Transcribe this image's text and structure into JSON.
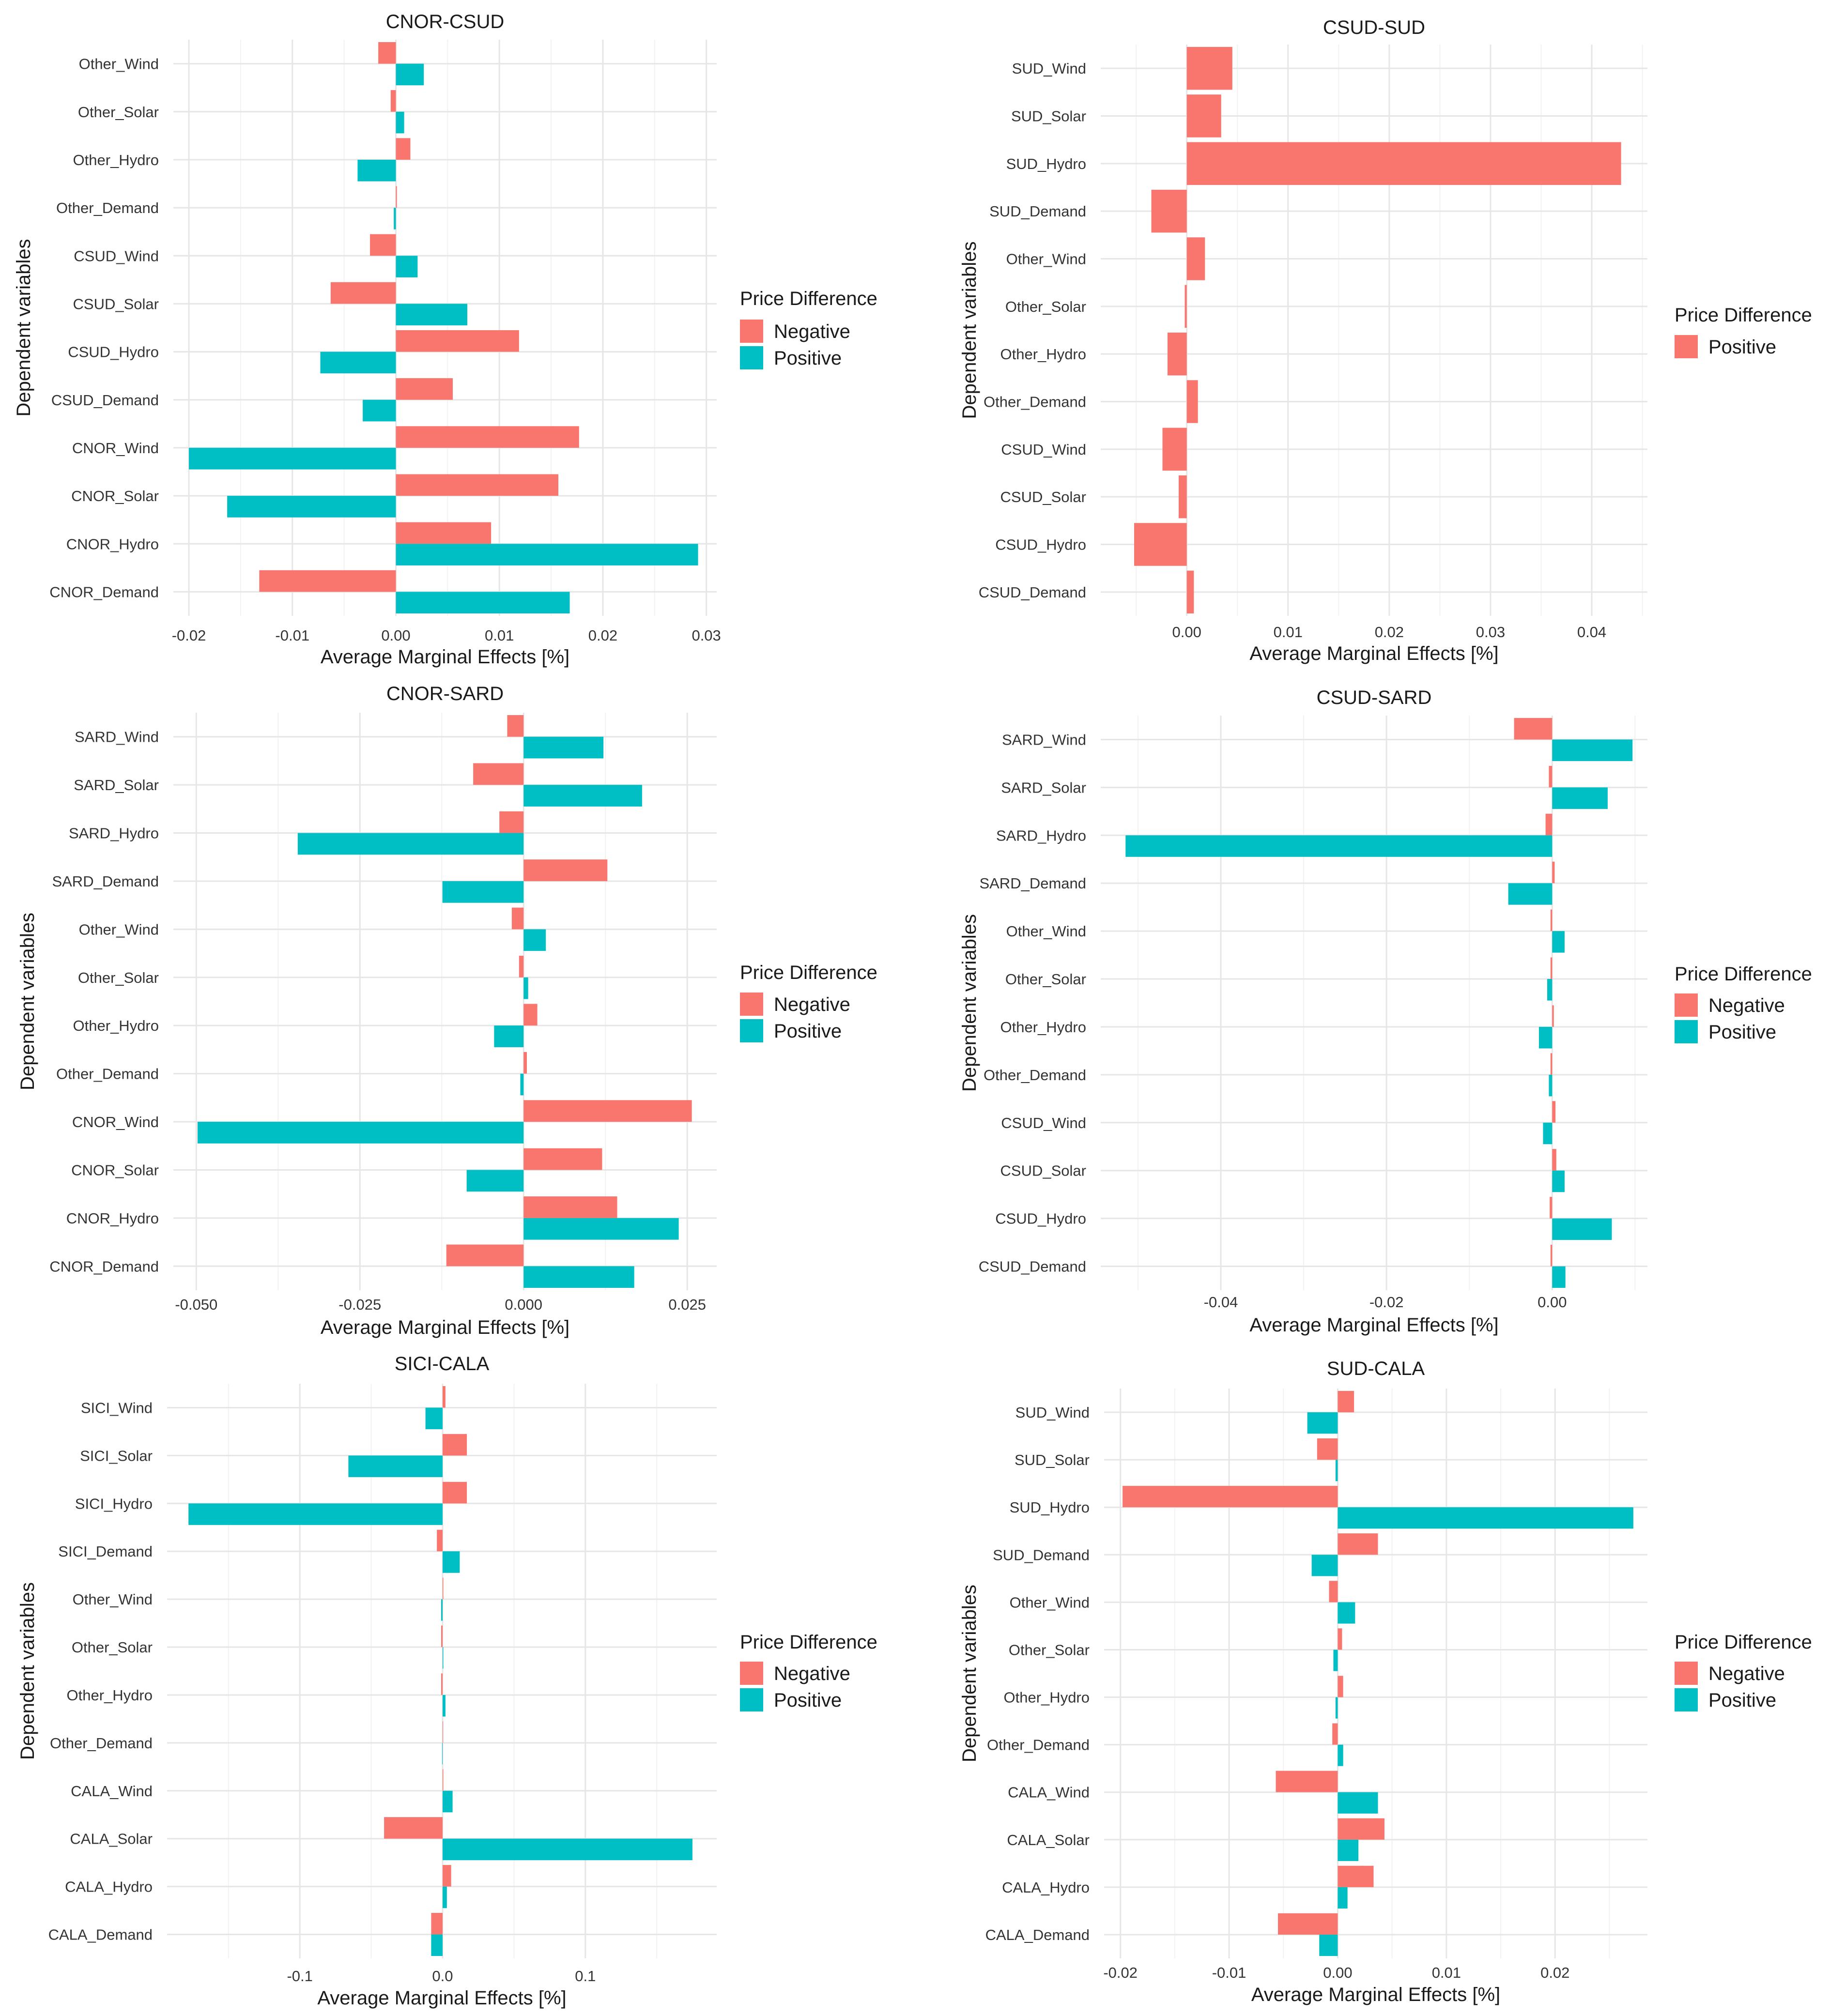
{
  "chart_data": [
    {
      "type": "bar",
      "orientation": "horizontal",
      "title": "CNOR-CSUD",
      "xlabel": "Average Marginal Effects [%]",
      "ylabel": "Dependent variables",
      "xlim": [
        -0.0215,
        0.031
      ],
      "xticks": [
        -0.02,
        -0.01,
        0.0,
        0.01,
        0.02,
        0.03
      ],
      "xtick_labels": [
        "-0.02",
        "-0.01",
        "0.00",
        "0.01",
        "0.02",
        "0.03"
      ],
      "categories": [
        "Other_Wind",
        "Other_Solar",
        "Other_Hydro",
        "Other_Demand",
        "CSUD_Wind",
        "CSUD_Solar",
        "CSUD_Hydro",
        "CSUD_Demand",
        "CNOR_Wind",
        "CNOR_Solar",
        "CNOR_Hydro",
        "CNOR_Demand"
      ],
      "legend": {
        "title": "Price Difference",
        "position": "right"
      },
      "series": [
        {
          "name": "Negative",
          "color": "#F8766D",
          "values": [
            -0.0017,
            -0.0005,
            0.0014,
            0.0001,
            -0.0025,
            -0.0063,
            0.0119,
            0.0055,
            0.0177,
            0.0157,
            0.0092,
            -0.0132
          ]
        },
        {
          "name": "Positive",
          "color": "#00BFC4",
          "values": [
            0.0027,
            0.0008,
            -0.0037,
            -0.0002,
            0.0021,
            0.0069,
            -0.0073,
            -0.0032,
            -0.02,
            -0.0163,
            0.0292,
            0.0168
          ]
        }
      ]
    },
    {
      "type": "bar",
      "orientation": "horizontal",
      "title": "CSUD-SUD",
      "xlabel": "Average Marginal Effects [%]",
      "ylabel": "Dependent variables",
      "xlim": [
        -0.0085,
        0.0455
      ],
      "xticks": [
        0.0,
        0.01,
        0.02,
        0.03,
        0.04
      ],
      "xtick_labels": [
        "0.00",
        "0.01",
        "0.02",
        "0.03",
        "0.04"
      ],
      "categories": [
        "SUD_Wind",
        "SUD_Solar",
        "SUD_Hydro",
        "SUD_Demand",
        "Other_Wind",
        "Other_Solar",
        "Other_Hydro",
        "Other_Demand",
        "CSUD_Wind",
        "CSUD_Solar",
        "CSUD_Hydro",
        "CSUD_Demand"
      ],
      "legend": {
        "title": "Price Difference",
        "position": "right"
      },
      "series": [
        {
          "name": "Positive",
          "color": "#F8766D",
          "values": [
            0.0045,
            0.0034,
            0.0429,
            -0.0035,
            0.0018,
            -0.0002,
            -0.0019,
            0.0011,
            -0.0024,
            -0.0008,
            -0.0052,
            0.0007
          ]
        }
      ]
    },
    {
      "type": "bar",
      "orientation": "horizontal",
      "title": "CNOR-SARD",
      "xlabel": "Average Marginal Effects [%]",
      "ylabel": "Dependent variables",
      "xlim": [
        -0.0535,
        0.0295
      ],
      "xticks": [
        -0.05,
        -0.025,
        0.0,
        0.025
      ],
      "xtick_labels": [
        "-0.050",
        "-0.025",
        "0.000",
        "0.025"
      ],
      "categories": [
        "SARD_Wind",
        "SARD_Solar",
        "SARD_Hydro",
        "SARD_Demand",
        "Other_Wind",
        "Other_Solar",
        "Other_Hydro",
        "Other_Demand",
        "CNOR_Wind",
        "CNOR_Solar",
        "CNOR_Hydro",
        "CNOR_Demand"
      ],
      "legend": {
        "title": "Price Difference",
        "position": "right"
      },
      "series": [
        {
          "name": "Negative",
          "color": "#F8766D",
          "values": [
            -0.0025,
            -0.0077,
            -0.0037,
            0.0128,
            -0.0018,
            -0.0007,
            0.0021,
            0.0005,
            0.0257,
            0.012,
            0.0143,
            -0.0118
          ]
        },
        {
          "name": "Positive",
          "color": "#00BFC4",
          "values": [
            0.0122,
            0.0181,
            -0.0345,
            -0.0124,
            0.0034,
            0.0007,
            -0.0045,
            -0.0005,
            -0.0498,
            -0.0087,
            0.0237,
            0.0169
          ]
        }
      ]
    },
    {
      "type": "bar",
      "orientation": "horizontal",
      "title": "CSUD-SARD",
      "xlabel": "Average Marginal Effects [%]",
      "ylabel": "Dependent variables",
      "xlim": [
        -0.0545,
        0.0115
      ],
      "xticks": [
        -0.04,
        -0.02,
        0.0
      ],
      "xtick_labels": [
        "-0.04",
        "-0.02",
        "0.00"
      ],
      "categories": [
        "SARD_Wind",
        "SARD_Solar",
        "SARD_Hydro",
        "SARD_Demand",
        "Other_Wind",
        "Other_Solar",
        "Other_Hydro",
        "Other_Demand",
        "CSUD_Wind",
        "CSUD_Solar",
        "CSUD_Hydro",
        "CSUD_Demand"
      ],
      "legend": {
        "title": "Price Difference",
        "position": "right"
      },
      "series": [
        {
          "name": "Negative",
          "color": "#F8766D",
          "values": [
            -0.0046,
            -0.0004,
            -0.0008,
            0.0003,
            -0.0002,
            -0.0002,
            0.0002,
            -0.0002,
            0.0004,
            0.0005,
            -0.0003,
            -0.0002
          ]
        },
        {
          "name": "Positive",
          "color": "#00BFC4",
          "values": [
            0.0097,
            0.0067,
            -0.0515,
            -0.0053,
            0.0015,
            -0.0006,
            -0.0016,
            -0.0004,
            -0.0011,
            0.0015,
            0.0072,
            0.0016
          ]
        }
      ]
    },
    {
      "type": "bar",
      "orientation": "horizontal",
      "title": "SICI-CALA",
      "xlabel": "Average Marginal Effects [%]",
      "ylabel": "Dependent variables",
      "xlim": [
        -0.193,
        0.192
      ],
      "xticks": [
        -0.1,
        0.0,
        0.1
      ],
      "xtick_labels": [
        "-0.1",
        "0.0",
        "0.1"
      ],
      "categories": [
        "SICI_Wind",
        "SICI_Solar",
        "SICI_Hydro",
        "SICI_Demand",
        "Other_Wind",
        "Other_Solar",
        "Other_Hydro",
        "Other_Demand",
        "CALA_Wind",
        "CALA_Solar",
        "CALA_Hydro",
        "CALA_Demand"
      ],
      "legend": {
        "title": "Price Difference",
        "position": "right"
      },
      "series": [
        {
          "name": "Negative",
          "color": "#F8766D",
          "values": [
            0.002,
            0.017,
            0.017,
            -0.004,
            0.0005,
            -0.001,
            -0.001,
            0.0003,
            0.0005,
            -0.041,
            0.006,
            -0.008
          ]
        },
        {
          "name": "Positive",
          "color": "#00BFC4",
          "values": [
            -0.012,
            -0.066,
            -0.178,
            0.012,
            -0.001,
            0.0005,
            0.002,
            -0.0003,
            0.007,
            0.175,
            0.003,
            -0.008
          ]
        }
      ]
    },
    {
      "type": "bar",
      "orientation": "horizontal",
      "title": "SUD-CALA",
      "xlabel": "Average Marginal Effects [%]",
      "ylabel": "Dependent variables",
      "xlim": [
        -0.0215,
        0.0285
      ],
      "xticks": [
        -0.02,
        -0.01,
        0.0,
        0.01,
        0.02
      ],
      "xtick_labels": [
        "-0.02",
        "-0.01",
        "0.00",
        "0.01",
        "0.02"
      ],
      "categories": [
        "SUD_Wind",
        "SUD_Solar",
        "SUD_Hydro",
        "SUD_Demand",
        "Other_Wind",
        "Other_Solar",
        "Other_Hydro",
        "Other_Demand",
        "CALA_Wind",
        "CALA_Solar",
        "CALA_Hydro",
        "CALA_Demand"
      ],
      "legend": {
        "title": "Price Difference",
        "position": "right"
      },
      "series": [
        {
          "name": "Negative",
          "color": "#F8766D",
          "values": [
            0.0015,
            -0.0019,
            -0.0198,
            0.0037,
            -0.0008,
            0.0004,
            0.0005,
            -0.0005,
            -0.0057,
            0.0043,
            0.0033,
            -0.0055
          ]
        },
        {
          "name": "Positive",
          "color": "#00BFC4",
          "values": [
            -0.0028,
            -0.0002,
            0.0272,
            -0.0024,
            0.0016,
            -0.0004,
            -0.0002,
            0.0005,
            0.0037,
            0.0019,
            0.0009,
            -0.0017
          ]
        }
      ]
    }
  ]
}
